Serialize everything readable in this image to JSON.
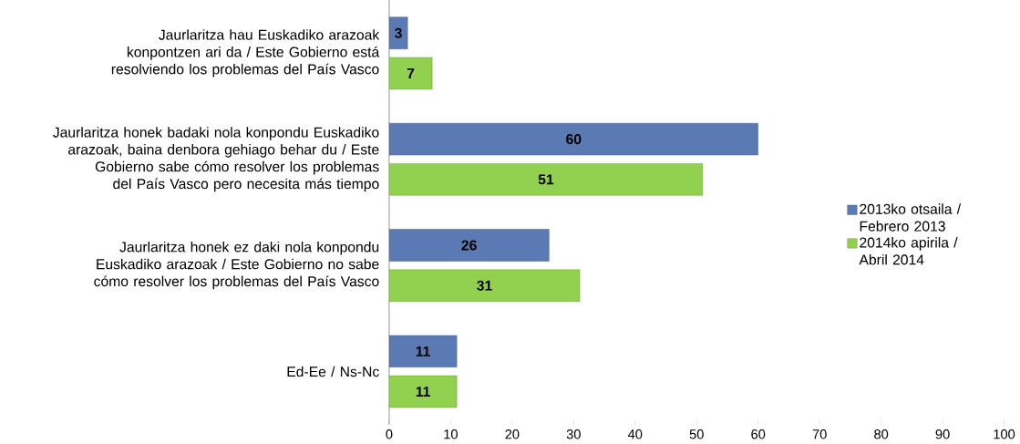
{
  "chart_data": {
    "type": "bar",
    "orientation": "horizontal",
    "categories": [
      "Jaurlaritza hau Euskadiko arazoak konpontzen ari da / Este Gobierno está resolviendo los problemas del País Vasco",
      "Jaurlaritza honek badaki nola konpondu Euskadiko arazoak, baina denbora gehiago behar du / Este Gobierno sabe cómo resolver los problemas del País Vasco pero necesita más tiempo",
      "Jaurlaritza honek ez daki nola konpondu Euskadiko arazoak / Este Gobierno no sabe cómo resolver los problemas del País Vasco",
      "Ed-Ee / Ns-Nc"
    ],
    "series": [
      {
        "name": "2013ko otsaila / Febrero 2013",
        "color": "#5b79b3",
        "values": [
          3,
          60,
          26,
          11
        ]
      },
      {
        "name": "2014ko apirila / Abril 2014",
        "color": "#92d050",
        "values": [
          7,
          51,
          31,
          11
        ]
      }
    ],
    "xlim": [
      0,
      100
    ],
    "xticks": [
      0,
      10,
      20,
      30,
      40,
      50,
      60,
      70,
      80,
      90,
      100
    ],
    "data_labels": true,
    "legend": "right",
    "grid": false
  }
}
